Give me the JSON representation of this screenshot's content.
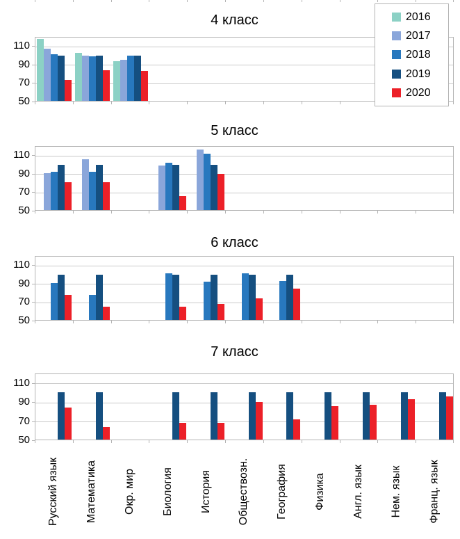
{
  "page": {
    "background": "#ffffff",
    "description": "Four stacked grouped bar charts of school subject indices by year",
    "language": "ru"
  },
  "legend": {
    "position": "top-right",
    "items": [
      {
        "label": "2016",
        "color": "#8CD1C5"
      },
      {
        "label": "2017",
        "color": "#8AA6DA"
      },
      {
        "label": "2018",
        "color": "#2878BE"
      },
      {
        "label": "2019",
        "color": "#154F80"
      },
      {
        "label": "2020",
        "color": "#EC2028"
      }
    ]
  },
  "axis": {
    "categories": [
      "Русский язык",
      "Математика",
      "Окр. мир",
      "Биология",
      "История",
      "Обществозн.",
      "География",
      "Физика",
      "Англ. язык",
      "Нем. язык",
      "Франц. язык"
    ],
    "y_ticks": [
      110,
      90,
      70,
      50
    ],
    "y_min": 50,
    "y_max": 120
  },
  "chart_data": [
    {
      "type": "bar",
      "title": "4 класс",
      "categories": [
        "Русский язык",
        "Математика",
        "Окр. мир",
        "Биология",
        "История",
        "Обществозн.",
        "География",
        "Физика",
        "Англ. язык",
        "Нем. язык",
        "Франц. язык"
      ],
      "ylim": [
        50,
        120
      ],
      "y_ticks": [
        110,
        90,
        70,
        50
      ],
      "grid": true,
      "legend_position": "top-right shared",
      "series": [
        {
          "name": "2016",
          "color": "#8CD1C5",
          "values": [
            118,
            103,
            94,
            null,
            null,
            null,
            null,
            null,
            null,
            null,
            null
          ]
        },
        {
          "name": "2017",
          "color": "#8AA6DA",
          "values": [
            107,
            100,
            95,
            null,
            null,
            null,
            null,
            null,
            null,
            null,
            null
          ]
        },
        {
          "name": "2018",
          "color": "#2878BE",
          "values": [
            101,
            99,
            100,
            null,
            null,
            null,
            null,
            null,
            null,
            null,
            null
          ]
        },
        {
          "name": "2019",
          "color": "#154F80",
          "values": [
            100,
            100,
            100,
            null,
            null,
            null,
            null,
            null,
            null,
            null,
            null
          ]
        },
        {
          "name": "2020",
          "color": "#EC2028",
          "values": [
            73,
            84,
            83,
            null,
            null,
            null,
            null,
            null,
            null,
            null,
            null
          ]
        }
      ]
    },
    {
      "type": "bar",
      "title": "5 класс",
      "categories": [
        "Русский язык",
        "Математика",
        "Окр. мир",
        "Биология",
        "История",
        "Обществозн.",
        "География",
        "Физика",
        "Англ. язык",
        "Нем. язык",
        "Франц. язык"
      ],
      "ylim": [
        50,
        120
      ],
      "y_ticks": [
        110,
        90,
        70,
        50
      ],
      "grid": true,
      "series": [
        {
          "name": "2017",
          "color": "#8AA6DA",
          "values": [
            91,
            106,
            null,
            99,
            116,
            null,
            null,
            null,
            null,
            null,
            null
          ]
        },
        {
          "name": "2018",
          "color": "#2878BE",
          "values": [
            92,
            92,
            null,
            102,
            112,
            null,
            null,
            null,
            null,
            null,
            null
          ]
        },
        {
          "name": "2019",
          "color": "#154F80",
          "values": [
            100,
            100,
            null,
            100,
            100,
            null,
            null,
            null,
            null,
            null,
            null
          ]
        },
        {
          "name": "2020",
          "color": "#EC2028",
          "values": [
            81,
            81,
            null,
            66,
            90,
            null,
            null,
            null,
            null,
            null,
            null
          ]
        }
      ]
    },
    {
      "type": "bar",
      "title": "6 класс",
      "categories": [
        "Русский язык",
        "Математика",
        "Окр. мир",
        "Биология",
        "История",
        "Обществозн.",
        "География",
        "Физика",
        "Англ. язык",
        "Нем. язык",
        "Франц. язык"
      ],
      "ylim": [
        50,
        120
      ],
      "y_ticks": [
        110,
        90,
        70,
        50
      ],
      "grid": true,
      "series": [
        {
          "name": "2018",
          "color": "#2878BE",
          "values": [
            91,
            78,
            null,
            101,
            92,
            101,
            93,
            null,
            null,
            null,
            null
          ]
        },
        {
          "name": "2019",
          "color": "#154F80",
          "values": [
            100,
            100,
            null,
            100,
            100,
            100,
            100,
            null,
            null,
            null,
            null
          ]
        },
        {
          "name": "2020",
          "color": "#EC2028",
          "values": [
            78,
            65,
            null,
            65,
            68,
            74,
            85,
            null,
            null,
            null,
            null
          ]
        }
      ]
    },
    {
      "type": "bar",
      "title": "7 класс",
      "categories": [
        "Русский язык",
        "Математика",
        "Окр. мир",
        "Биология",
        "История",
        "Обществозн.",
        "География",
        "Физика",
        "Англ. язык",
        "Нем. язык",
        "Франц. язык"
      ],
      "ylim": [
        50,
        120
      ],
      "y_ticks": [
        110,
        90,
        70,
        50
      ],
      "grid": true,
      "series": [
        {
          "name": "2019",
          "color": "#154F80",
          "values": [
            100,
            100,
            null,
            100,
            100,
            100,
            100,
            100,
            100,
            100,
            100
          ]
        },
        {
          "name": "2020",
          "color": "#EC2028",
          "values": [
            84,
            64,
            null,
            68,
            68,
            90,
            72,
            86,
            87,
            93,
            96
          ]
        }
      ]
    }
  ]
}
